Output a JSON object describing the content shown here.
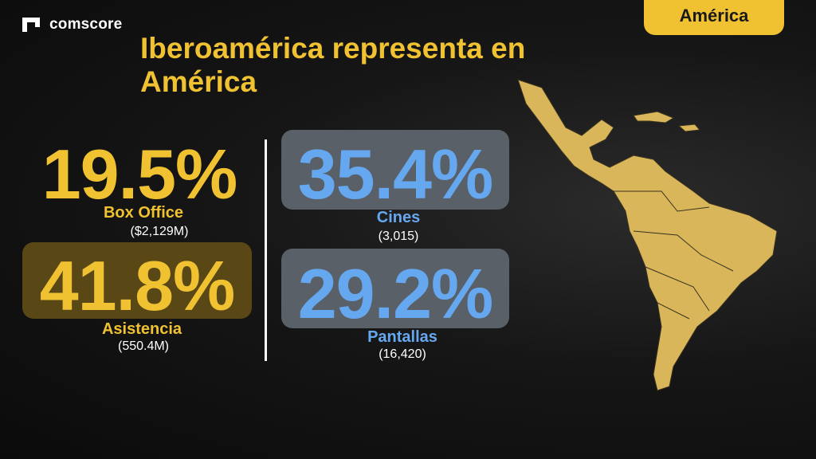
{
  "brand": {
    "name": "comscore"
  },
  "region_tab": "América",
  "title": "Iberoamérica representa en América",
  "stats": {
    "box_office": {
      "value": "19.5%",
      "label": "Box Office",
      "detail": "($2,129M)"
    },
    "asistencia": {
      "value": "41.8%",
      "label": "Asistencia",
      "detail": "(550.4M)"
    },
    "cines": {
      "value": "35.4%",
      "label": "Cines",
      "detail": "(3,015)"
    },
    "pantallas": {
      "value": "29.2%",
      "label": "Pantallas",
      "detail": "(16,420)"
    }
  },
  "colors": {
    "accent": "#f0c232",
    "blue": "#66a8f0",
    "background": "#111111"
  }
}
